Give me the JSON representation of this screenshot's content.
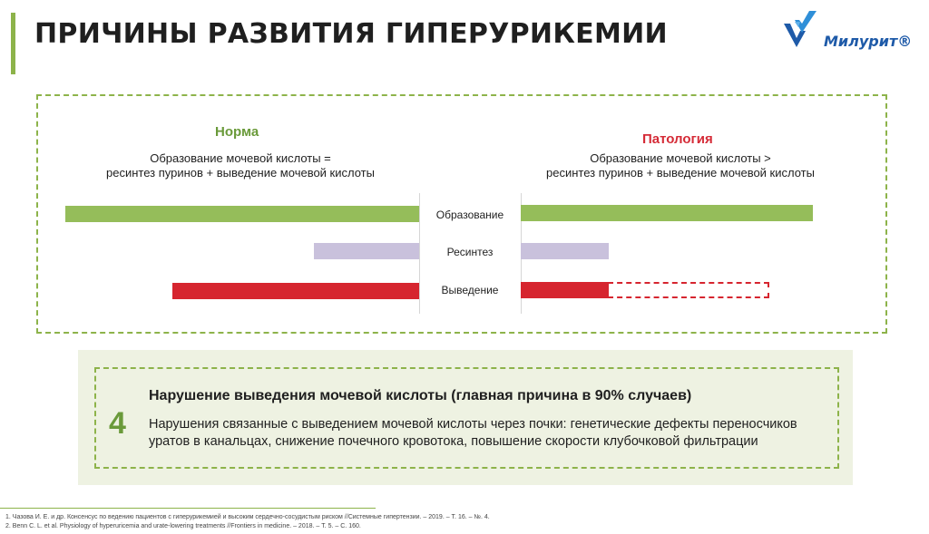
{
  "title": "ПРИЧИНЫ РАЗВИТИЯ ГИПЕРУРИКЕМИИ",
  "logo": {
    "text": "Милурит®"
  },
  "norm": {
    "heading": "Норма",
    "formula_line1": "Образование мочевой кислоты =",
    "formula_line2": "ресинтез пуринов + выведение мочевой кислоты"
  },
  "pathology": {
    "heading": "Патология",
    "formula_line1": "Образование мочевой кислоты >",
    "formula_line2": "ресинтез пуринов + выведение мочевой кислоты"
  },
  "row_labels": {
    "formation": "Образование",
    "resynthesis": "Ресинтез",
    "excretion": "Выведение"
  },
  "colors": {
    "green": "#95bd5a",
    "lilac": "#c9c1dc",
    "red": "#d6252f",
    "accent": "#8db34a"
  },
  "cause": {
    "number": "4",
    "title": "Нарушение выведения мочевой кислоты (главная причина в 90% случаев)",
    "text": "Нарушения связанные с выведением мочевой кислоты через почки: генетические дефекты переносчиков уратов в канальцах, снижение почечного кровотока, повышение скорости клубочковой фильтрации"
  },
  "references": [
    "1.    Чазова И. Е. и др. Консенсус по ведению пациентов с гиперурикемией и высоким сердечно-сосудистым риском //Системные гипертензии. – 2019. – Т. 16. – №. 4.",
    "2.    Benn C. L. et al. Physiology of hyperuricemia and urate-lowering treatments //Frontiers in medicine. – 2018. – Т. 5. – С. 160."
  ]
}
